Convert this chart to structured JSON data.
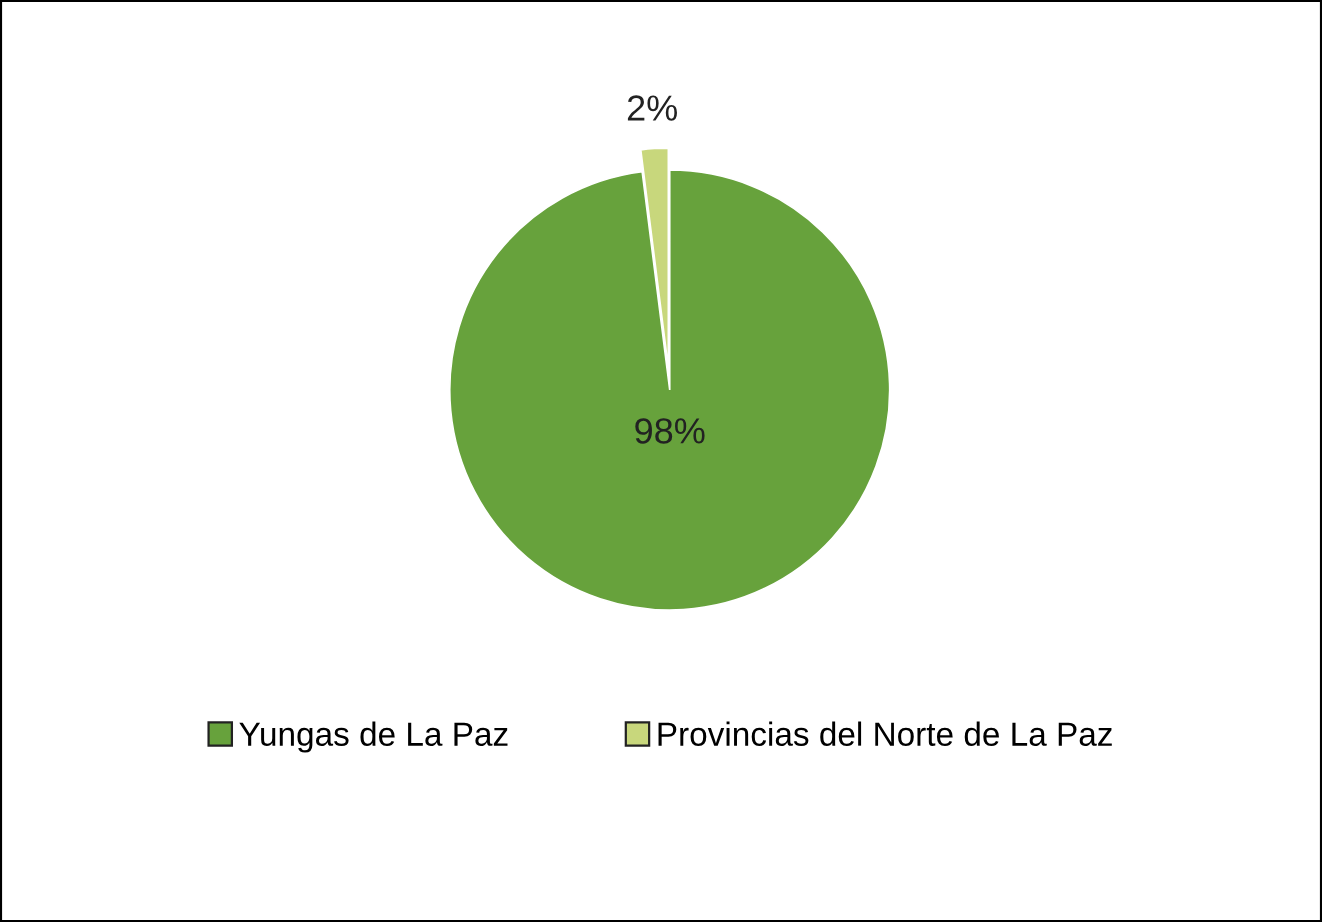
{
  "chart_data": {
    "type": "pie",
    "categories": [
      "Yungas de La Paz",
      "Provincias del Norte de La Paz"
    ],
    "values": [
      98,
      2
    ],
    "colors": [
      "#67a23c",
      "#c8d77c"
    ],
    "value_labels": [
      "98%",
      "2%"
    ],
    "legend": "bottom"
  }
}
